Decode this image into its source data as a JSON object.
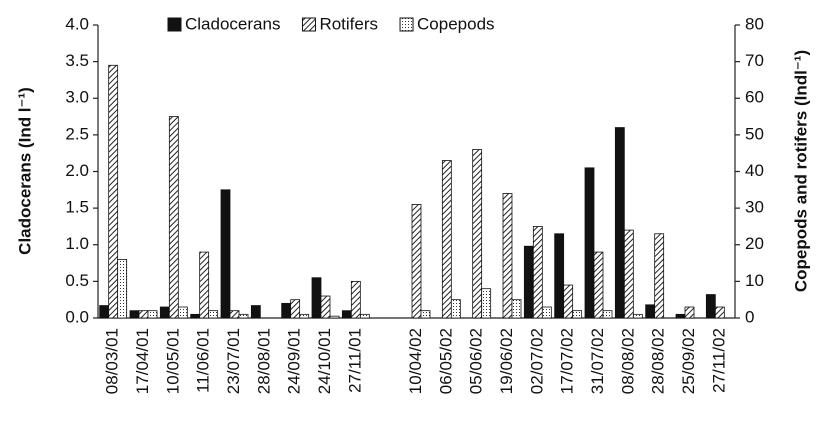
{
  "chart_data": {
    "type": "bar",
    "y_label": "Cladocerans (Ind l⁻¹)",
    "y2_label": "Copepods and rotifers (Indl⁻¹)",
    "legend": "top",
    "categories": [
      "08/03/01",
      "17/04/01",
      "10/05/01",
      "11/06/01",
      "23/07/01",
      "28/08/01",
      "24/09/01",
      "24/10/01",
      "27/11/01",
      null,
      "10/04/02",
      "06/05/02",
      "05/06/02",
      "19/06/02",
      "02/07/02",
      "17/07/02",
      "31/07/02",
      "08/08/02",
      "28/08/02",
      "25/09/02",
      "27/11/02"
    ],
    "series": [
      {
        "name": "Cladocerans",
        "color": "#111111",
        "pattern": "solid",
        "values": [
          0.17,
          0.1,
          0.15,
          0.05,
          1.75,
          0.17,
          0.2,
          0.55,
          0.1,
          null,
          0,
          0,
          0,
          0,
          0.98,
          1.15,
          2.05,
          2.6,
          0.18,
          0.05,
          0.32
        ]
      },
      {
        "name": "Rotifers",
        "color": "#111111",
        "pattern": "hatch",
        "axis": "y2",
        "values": [
          69,
          2,
          55,
          18,
          2,
          0,
          5,
          6,
          10,
          null,
          31,
          43,
          46,
          34,
          25,
          9,
          18,
          24,
          23,
          3,
          3
        ]
      },
      {
        "name": "Copepods",
        "color": "#111111",
        "pattern": "dots",
        "axis": "y2",
        "values": [
          16,
          2,
          3,
          2,
          1,
          0,
          1,
          0.5,
          1,
          null,
          2,
          5,
          8,
          5,
          3,
          2,
          2,
          1,
          0,
          0,
          0
        ]
      }
    ],
    "ylim": [
      0,
      4
    ],
    "yticks": [
      {
        "value": 0,
        "label": "0.0"
      },
      {
        "value": 0.5,
        "label": "0.5"
      },
      {
        "value": 1,
        "label": "1.0"
      },
      {
        "value": 1.5,
        "label": "1.5"
      },
      {
        "value": 2,
        "label": "2.0"
      },
      {
        "value": 2.5,
        "label": "2.5"
      },
      {
        "value": 3,
        "label": "3.0"
      },
      {
        "value": 3.5,
        "label": "3.5"
      },
      {
        "value": 4,
        "label": "4.0"
      }
    ],
    "y2lim": [
      0,
      80
    ],
    "y2ticks": [
      0,
      10,
      20,
      30,
      40,
      50,
      60,
      70,
      80
    ]
  }
}
